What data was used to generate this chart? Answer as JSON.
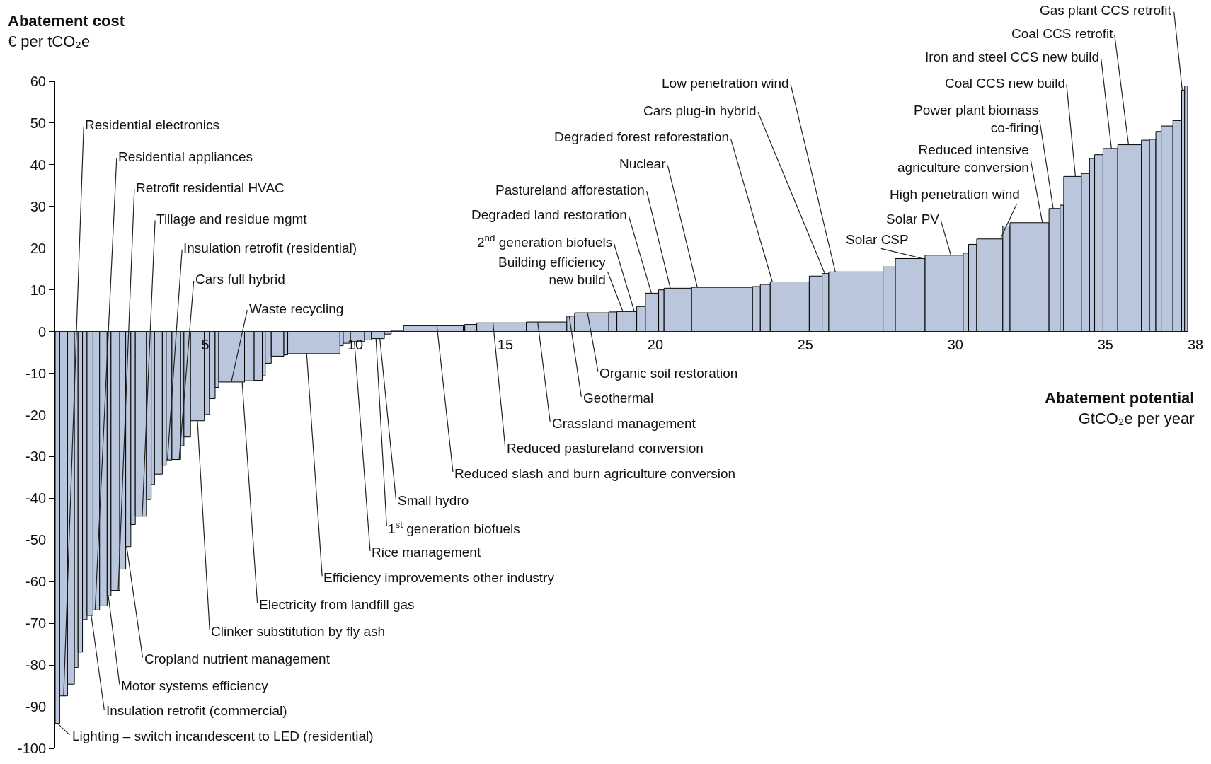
{
  "chart_data": {
    "type": "histogram",
    "ylabel": "Abatement cost\n€ per tCO₂e",
    "xlabel": "Abatement potential\nGtCO₂e per year",
    "color": "#b9c6dc",
    "bins": [
      0,
      0.15,
      0.41,
      0.64,
      0.76,
      0.91,
      1.06,
      1.26,
      1.48,
      1.73,
      1.86,
      2.15,
      2.35,
      2.52,
      2.67,
      3.04,
      3.2,
      3.31,
      3.57,
      3.7,
      3.89,
      4.18,
      4.29,
      4.51,
      4.97,
      5.14,
      5.33,
      5.45,
      6.31,
      6.63,
      6.9,
      7.0,
      7.2,
      7.62,
      7.75,
      9.49,
      9.6,
      9.84,
      10.31,
      10.54,
      10.97,
      11.2,
      11.61,
      13.6,
      13.65,
      14.05,
      15.7,
      17.05,
      17.31,
      18.45,
      18.72,
      19.38,
      19.67,
      20.11,
      20.29,
      21.21,
      23.24,
      23.5,
      23.83,
      25.13,
      25.56,
      25.78,
      27.59,
      28.0,
      28.99,
      30.26,
      30.44,
      30.71,
      31.58,
      31.82,
      33.12,
      33.49,
      33.61,
      34.2,
      34.47,
      34.64,
      34.92,
      35.41,
      36.2,
      36.47,
      36.68,
      36.86,
      37.25,
      37.54,
      37.64,
      37.74
    ],
    "values": [
      -94,
      -87.4,
      -84.6,
      -80.6,
      -76.9,
      -69.1,
      -68.1,
      -66.8,
      -65.8,
      -63.4,
      -62.1,
      -57,
      -51.6,
      -46.3,
      -44.3,
      -40.3,
      -36.7,
      -34.2,
      -32.1,
      -30.8,
      -30.7,
      -27.4,
      -25.3,
      -21.4,
      -19.9,
      -16.1,
      -13.4,
      -12.1,
      -11.8,
      -11.7,
      -10.6,
      -7.6,
      -5.9,
      -5.6,
      -5.3,
      -3.4,
      -2.8,
      -2.4,
      -2.0,
      -1.7,
      -0.6,
      0.3,
      1.4,
      1.6,
      1.7,
      2.1,
      2.3,
      3.7,
      4.5,
      4.7,
      4.8,
      6.0,
      9.2,
      10.0,
      10.4,
      10.6,
      10.8,
      11.3,
      11.9,
      13.3,
      13.9,
      14.3,
      15.5,
      17.5,
      18.3,
      18.8,
      20.9,
      22.2,
      25.3,
      26.1,
      29.5,
      30.3,
      37.2,
      37.9,
      41.5,
      42.4,
      43.9,
      44.8,
      45.9,
      46.1,
      48.0,
      49.3,
      50.6,
      57.9,
      58.9
    ],
    "xlim": [
      0,
      38
    ],
    "xticks": [
      5,
      10,
      15,
      20,
      25,
      30,
      35,
      38
    ],
    "ylim": [
      -100,
      60
    ],
    "yticks": [
      -100,
      -90,
      -80,
      -70,
      -60,
      -50,
      -40,
      -30,
      -20,
      -10,
      0,
      10,
      20,
      30,
      40,
      50,
      60
    ],
    "grid": false,
    "annotations": [
      {
        "text": "Residential electronics",
        "x": 0.28,
        "y": -87.4
      },
      {
        "text": "Residential appliances",
        "x": 1.33,
        "y": -66.8
      },
      {
        "text": "Retrofit residential HVAC",
        "x": 2.1,
        "y": -62.1
      },
      {
        "text": "Tillage and residue mgmt",
        "x": 2.9,
        "y": -44.3
      },
      {
        "text": "Insulation retrofit (residential)",
        "x": 3.74,
        "y": -30.8
      },
      {
        "text": "Cars full hybrid",
        "x": 4.13,
        "y": -30.7
      },
      {
        "text": "Waste recycling",
        "x": 5.87,
        "y": -12.1
      },
      {
        "text": "Organic soil restoration",
        "x": 17.74,
        "y": 4.5
      },
      {
        "text": "Geothermal",
        "x": 17.13,
        "y": 3.7
      },
      {
        "text": "Grassland management",
        "x": 16.08,
        "y": 2.3
      },
      {
        "text": "Reduced pastureland conversion",
        "x": 14.59,
        "y": 2.1
      },
      {
        "text": "Reduced slash and burn agriculture conversion",
        "x": 12.72,
        "y": 1.4
      },
      {
        "text": "Small hydro",
        "x": 10.82,
        "y": -1.7
      },
      {
        "text": "1$^{st}$ generation biofuels",
        "x": 10.69,
        "y": -1.7
      },
      {
        "text": "Rice management",
        "x": 9.97,
        "y": -2.4
      },
      {
        "text": "Efficiency improvements other industry",
        "x": 8.38,
        "y": -5.3
      },
      {
        "text": "Electricity from landfill gas",
        "x": 6.23,
        "y": -12.1
      },
      {
        "text": "Clinker substitution by fly ash",
        "x": 4.74,
        "y": -21.4
      },
      {
        "text": "Cropland nutrient management",
        "x": 2.38,
        "y": -51.6
      },
      {
        "text": "Motor systems efficiency",
        "x": 1.77,
        "y": -63.4
      },
      {
        "text": "Insulation retrofit (commercial)",
        "x": 1.2,
        "y": -68.1
      },
      {
        "text": "Lighting – switch incandescent to LED (residential)",
        "x": 0.08,
        "y": -94
      },
      {
        "text": "Low penetration wind",
        "x": 26.0,
        "y": 14.3
      },
      {
        "text": "Cars plug-in hybrid",
        "x": 25.65,
        "y": 13.9
      },
      {
        "text": "Degraded forest reforestation",
        "x": 23.9,
        "y": 11.9
      },
      {
        "text": "Nuclear",
        "x": 21.4,
        "y": 10.6
      },
      {
        "text": "Pastureland afforestation",
        "x": 20.5,
        "y": 10.4
      },
      {
        "text": "Degraded land restoration",
        "x": 19.87,
        "y": 9.2
      },
      {
        "text": "2$^{nd}$ generation biofuels",
        "x": 19.3,
        "y": 4.8
      },
      {
        "text": "Building efficiency\nnew build",
        "x": 18.92,
        "y": 4.8
      },
      {
        "text": "Solar CSP",
        "x": 28.9,
        "y": 17.5
      },
      {
        "text": "Solar PV",
        "x": 29.85,
        "y": 18.3
      },
      {
        "text": "High penetration wind",
        "x": 31.5,
        "y": 22.2
      },
      {
        "text": "Reduced intensive\nagriculture conversion",
        "x": 32.9,
        "y": 26.1
      },
      {
        "text": "Power plant biomass\nco-firing",
        "x": 33.26,
        "y": 29.5
      },
      {
        "text": "Coal CCS new build",
        "x": 34.0,
        "y": 37.2
      },
      {
        "text": "Iron and steel CCS new build",
        "x": 35.2,
        "y": 43.9
      },
      {
        "text": "Coal CCS retrofit",
        "x": 35.77,
        "y": 44.8
      },
      {
        "text": "Gas plant CCS retrofit",
        "x": 37.56,
        "y": 57.9
      }
    ]
  }
}
